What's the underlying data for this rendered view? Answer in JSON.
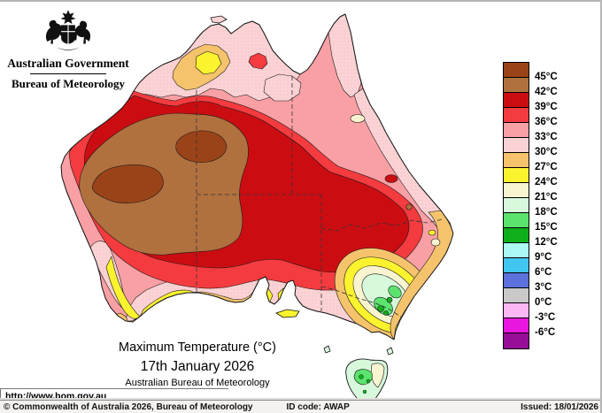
{
  "header": {
    "government_title": "Australian Government",
    "bureau_title": "Bureau of Meteorology"
  },
  "legend": {
    "unit": "°C",
    "colors": [
      "#9B4318",
      "#B0713F",
      "#CB0D12",
      "#F43B3F",
      "#F9A0A5",
      "#FBD3D5",
      "#F4C36C",
      "#FAF32E",
      "#F8F4D0",
      "#D8F8DC",
      "#5BE36E",
      "#0FAF1B",
      "#ABF8F6",
      "#40C6F0",
      "#5C71DC",
      "#C9C9C9",
      "#FBB6F4",
      "#E816DE",
      "#970D97"
    ],
    "labels": [
      "45°C",
      "42°C",
      "39°C",
      "36°C",
      "33°C",
      "30°C",
      "27°C",
      "24°C",
      "21°C",
      "18°C",
      "15°C",
      "12°C",
      "9°C",
      "6°C",
      "3°C",
      "0°C",
      "-3°C",
      "-6°C"
    ]
  },
  "map": {
    "title": "Maximum Temperature (°C)",
    "date": "17th January 2026",
    "source": "Australian Bureau of Meteorology",
    "contour_outline_color": "#1a1a1a",
    "state_border_color": "#333333"
  },
  "footer": {
    "url": "http://www.bom.gov.au",
    "copyright": "© Commonwealth of Australia 2026, Bureau of Meteorology",
    "id_code": "ID code: AWAP",
    "issued": "Issued: 18/01/2026"
  }
}
